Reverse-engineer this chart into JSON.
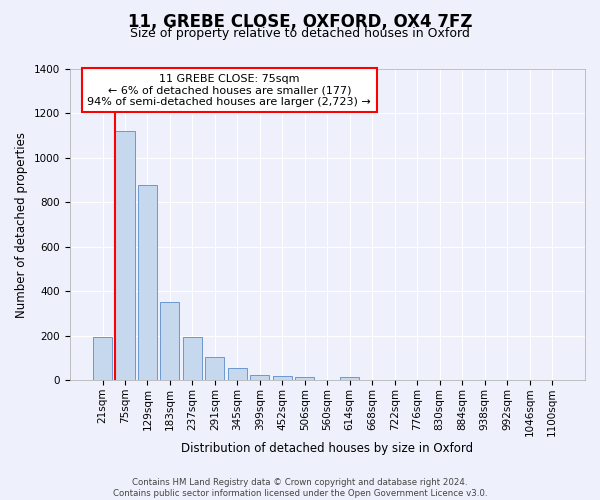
{
  "title": "11, GREBE CLOSE, OXFORD, OX4 7FZ",
  "subtitle": "Size of property relative to detached houses in Oxford",
  "xlabel": "Distribution of detached houses by size in Oxford",
  "ylabel": "Number of detached properties",
  "footer_line1": "Contains HM Land Registry data © Crown copyright and database right 2024.",
  "footer_line2": "Contains public sector information licensed under the Open Government Licence v3.0.",
  "categories": [
    "21sqm",
    "75sqm",
    "129sqm",
    "183sqm",
    "237sqm",
    "291sqm",
    "345sqm",
    "399sqm",
    "452sqm",
    "506sqm",
    "560sqm",
    "614sqm",
    "668sqm",
    "722sqm",
    "776sqm",
    "830sqm",
    "884sqm",
    "938sqm",
    "992sqm",
    "1046sqm",
    "1100sqm"
  ],
  "values": [
    195,
    1120,
    880,
    350,
    195,
    105,
    55,
    22,
    17,
    14,
    0,
    14,
    0,
    0,
    0,
    0,
    0,
    0,
    0,
    0,
    0
  ],
  "bar_color": "#c5d8ee",
  "bar_edge_color": "#5b8cc8",
  "red_vline_bar_index": 1,
  "red_line_color": "#ff0000",
  "annotation_text": "11 GREBE CLOSE: 75sqm\n← 6% of detached houses are smaller (177)\n94% of semi-detached houses are larger (2,723) →",
  "annotation_box_edge_color": "#ff0000",
  "ylim": [
    0,
    1400
  ],
  "yticks": [
    0,
    200,
    400,
    600,
    800,
    1000,
    1200,
    1400
  ],
  "bg_color": "#eef1fb",
  "plot_bg_color": "#eef1fb",
  "title_fontsize": 12,
  "subtitle_fontsize": 9,
  "axis_label_fontsize": 8.5,
  "tick_fontsize": 7.5
}
